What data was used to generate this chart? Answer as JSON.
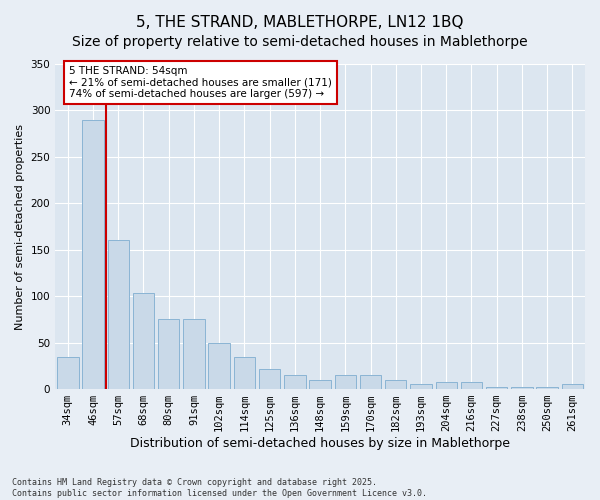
{
  "title": "5, THE STRAND, MABLETHORPE, LN12 1BQ",
  "subtitle": "Size of property relative to semi-detached houses in Mablethorpe",
  "xlabel": "Distribution of semi-detached houses by size in Mablethorpe",
  "ylabel": "Number of semi-detached properties",
  "categories": [
    "34sqm",
    "46sqm",
    "57sqm",
    "68sqm",
    "80sqm",
    "91sqm",
    "102sqm",
    "114sqm",
    "125sqm",
    "136sqm",
    "148sqm",
    "159sqm",
    "170sqm",
    "182sqm",
    "193sqm",
    "204sqm",
    "216sqm",
    "227sqm",
    "238sqm",
    "250sqm",
    "261sqm"
  ],
  "values": [
    35,
    290,
    160,
    103,
    75,
    75,
    50,
    35,
    22,
    15,
    10,
    15,
    15,
    10,
    5,
    8,
    8,
    2,
    2,
    2,
    5
  ],
  "bar_color": "#c9d9e8",
  "bar_edge_color": "#8ab4d4",
  "vline_x": 1.5,
  "vline_color": "#cc0000",
  "annotation_text": "5 THE STRAND: 54sqm\n← 21% of semi-detached houses are smaller (171)\n74% of semi-detached houses are larger (597) →",
  "annotation_box_color": "#ffffff",
  "annotation_box_edge": "#cc0000",
  "footer": "Contains HM Land Registry data © Crown copyright and database right 2025.\nContains public sector information licensed under the Open Government Licence v3.0.",
  "bg_color": "#e8eef5",
  "plot_bg_color": "#dce6f0",
  "ylim": [
    0,
    350
  ],
  "yticks": [
    0,
    50,
    100,
    150,
    200,
    250,
    300,
    350
  ],
  "title_fontsize": 11,
  "subtitle_fontsize": 10,
  "xlabel_fontsize": 9,
  "ylabel_fontsize": 8,
  "tick_fontsize": 7.5,
  "footer_fontsize": 6
}
